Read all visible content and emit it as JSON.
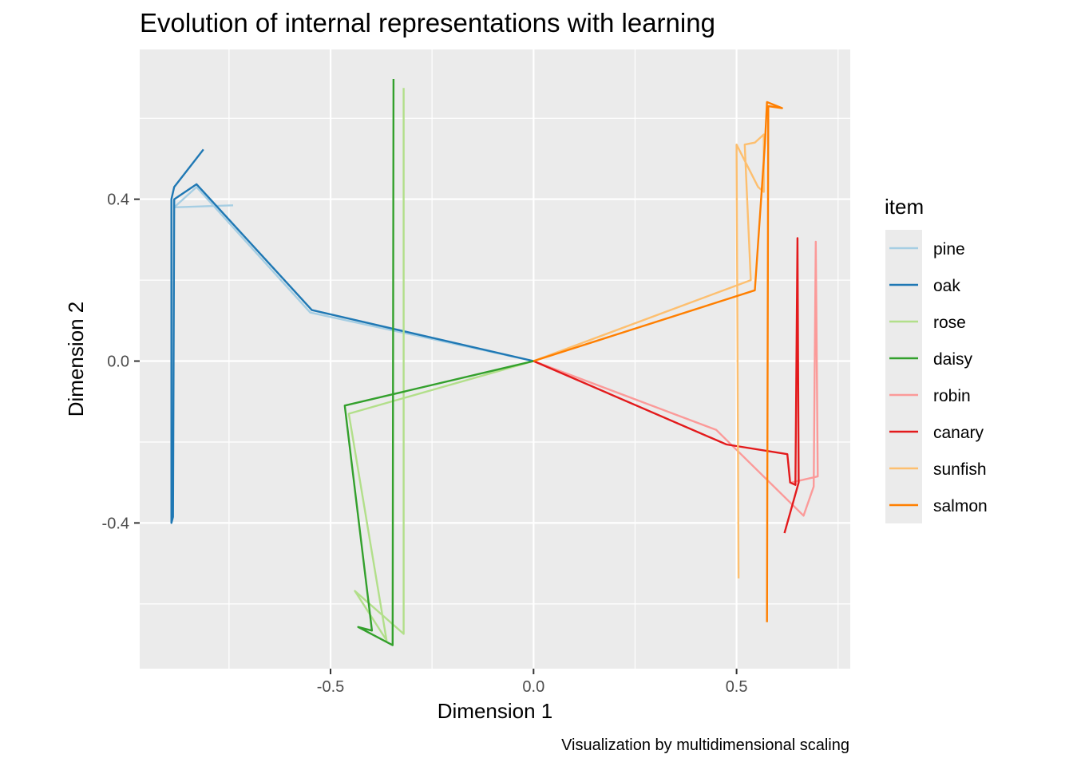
{
  "chart_data": {
    "type": "line",
    "title": "Evolution of internal representations with learning",
    "xlabel": "Dimension 1",
    "ylabel": "Dimension 2",
    "caption": "Visualization by multidimensional scaling",
    "xlim": [
      -0.97,
      0.78
    ],
    "ylim": [
      -0.76,
      0.77
    ],
    "x_ticks": [
      -0.5,
      0.0,
      0.5
    ],
    "x_tick_labels": [
      "-0.5",
      "0.0",
      "0.5"
    ],
    "y_ticks": [
      -0.4,
      0.0,
      0.4
    ],
    "y_tick_labels": [
      "-0.4",
      "0.0",
      "0.4"
    ],
    "grid": true,
    "background": "#ebebeb",
    "legend": {
      "title": "item",
      "position": "right"
    },
    "series": [
      {
        "name": "pine",
        "color": "#a6cee3",
        "points": [
          [
            0.0,
            0.0
          ],
          [
            -0.55,
            0.12
          ],
          [
            -0.83,
            0.43
          ],
          [
            -0.885,
            0.38
          ],
          [
            -0.74,
            0.385
          ]
        ]
      },
      {
        "name": "oak",
        "color": "#1f78b4",
        "points": [
          [
            -0.813,
            0.523
          ],
          [
            -0.885,
            0.43
          ],
          [
            -0.892,
            0.4
          ],
          [
            -0.892,
            -0.4
          ],
          [
            -0.888,
            -0.385
          ],
          [
            -0.885,
            0.4
          ],
          [
            -0.83,
            0.437
          ],
          [
            -0.546,
            0.126
          ],
          [
            0.0,
            0.0
          ]
        ]
      },
      {
        "name": "rose",
        "color": "#b2df8a",
        "points": [
          [
            0.0,
            0.0
          ],
          [
            -0.455,
            -0.13
          ],
          [
            -0.362,
            -0.69
          ],
          [
            -0.44,
            -0.568
          ],
          [
            -0.32,
            -0.674
          ],
          [
            -0.32,
            0.675
          ]
        ]
      },
      {
        "name": "daisy",
        "color": "#33a02c",
        "points": [
          [
            0.0,
            0.0
          ],
          [
            -0.465,
            -0.11
          ],
          [
            -0.398,
            -0.666
          ],
          [
            -0.432,
            -0.657
          ],
          [
            -0.347,
            -0.702
          ],
          [
            -0.345,
            0.697
          ]
        ]
      },
      {
        "name": "robin",
        "color": "#fb9a99",
        "points": [
          [
            0.0,
            0.0
          ],
          [
            0.45,
            -0.17
          ],
          [
            0.665,
            -0.382
          ],
          [
            0.69,
            -0.31
          ],
          [
            0.695,
            0.295
          ],
          [
            0.7,
            -0.285
          ],
          [
            0.635,
            -0.3
          ]
        ]
      },
      {
        "name": "canary",
        "color": "#e31a1c",
        "points": [
          [
            0.0,
            0.0
          ],
          [
            0.475,
            -0.206
          ],
          [
            0.625,
            -0.23
          ],
          [
            0.632,
            -0.3
          ],
          [
            0.645,
            -0.306
          ],
          [
            0.65,
            0.304
          ],
          [
            0.653,
            -0.3
          ],
          [
            0.618,
            -0.425
          ]
        ]
      },
      {
        "name": "sunfish",
        "color": "#fdbf6f",
        "points": [
          [
            0.0,
            0.0
          ],
          [
            0.535,
            0.2
          ],
          [
            0.52,
            0.535
          ],
          [
            0.545,
            0.54
          ],
          [
            0.567,
            0.56
          ],
          [
            0.567,
            0.418
          ],
          [
            0.553,
            0.43
          ],
          [
            0.5,
            0.535
          ],
          [
            0.505,
            -0.537
          ]
        ]
      },
      {
        "name": "salmon",
        "color": "#ff7f00",
        "points": [
          [
            0.0,
            0.0
          ],
          [
            0.545,
            0.175
          ],
          [
            0.57,
            0.54
          ],
          [
            0.575,
            0.64
          ],
          [
            0.612,
            0.625
          ],
          [
            0.578,
            0.63
          ],
          [
            0.575,
            -0.645
          ]
        ]
      }
    ]
  }
}
